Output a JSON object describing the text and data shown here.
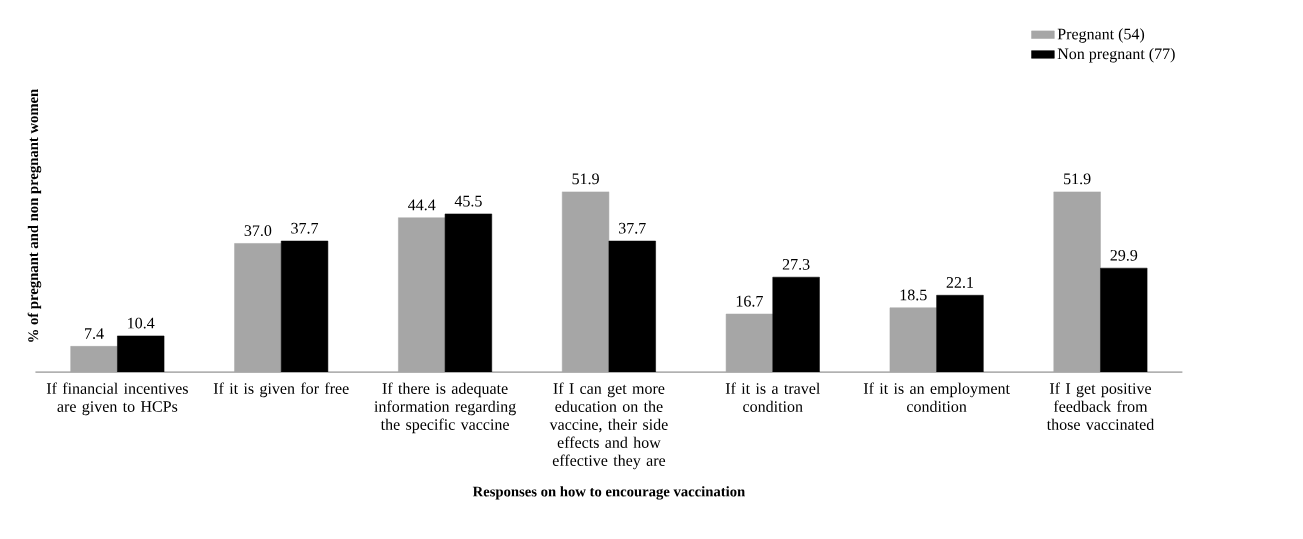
{
  "chart_data": {
    "type": "bar",
    "xlabel": "Responses on how to encourage vaccination",
    "ylabel": "% of pregnant and non pregnant women",
    "categories": [
      "If financial incentives are given to HCPs",
      "If it is given for free",
      "If there is adequate information regarding the specific vaccine",
      "If I can get more education on the vaccine, their side effects and how effective they are",
      "If it is a travel condition",
      "If it is an employment condition",
      "If I get positive feedback from those vaccinated"
    ],
    "series": [
      {
        "name": "Pregnant (54)",
        "color": "#a6a6a6",
        "values": [
          7.4,
          37.0,
          44.4,
          51.9,
          16.7,
          18.5,
          51.9
        ],
        "value_labels": [
          "7.4",
          "37.0",
          "44.4",
          "51.9",
          "16.7",
          "18.5",
          "51.9"
        ]
      },
      {
        "name": "Non pregnant (77)",
        "color": "#000000",
        "values": [
          10.4,
          37.7,
          45.5,
          37.7,
          27.3,
          22.1,
          29.9
        ],
        "value_labels": [
          "10.4",
          "37.7",
          "45.5",
          "37.7",
          "27.3",
          "22.1",
          "29.9"
        ]
      }
    ],
    "legend": "top right"
  }
}
